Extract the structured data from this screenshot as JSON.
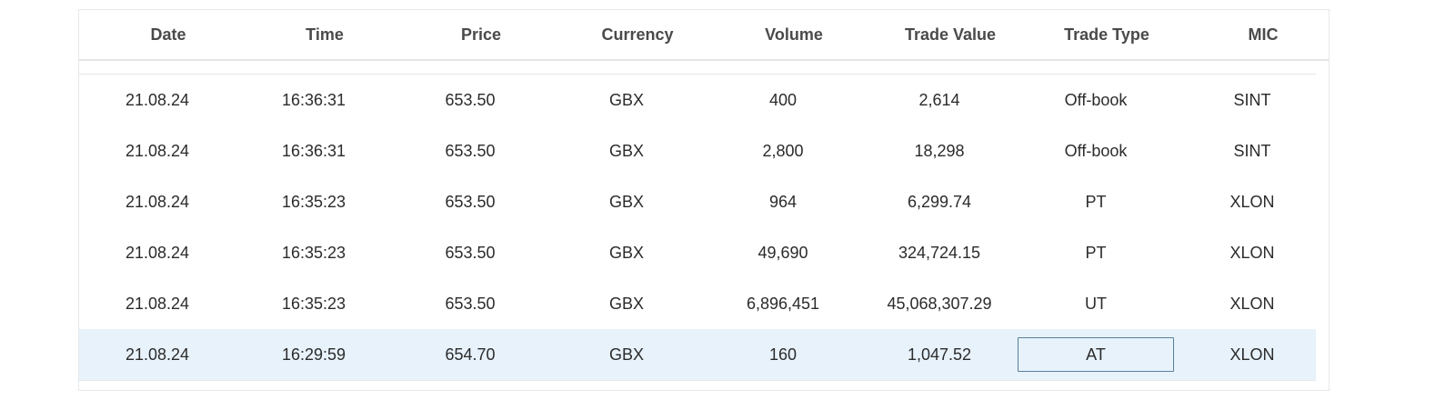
{
  "table": {
    "columns": [
      "Date",
      "Time",
      "Price",
      "Currency",
      "Volume",
      "Trade Value",
      "Trade Type",
      "MIC"
    ],
    "rows": [
      [
        "21.08.24",
        "16:36:31",
        "653.50",
        "GBX",
        "400",
        "2,614",
        "Off-book",
        "SINT"
      ],
      [
        "21.08.24",
        "16:36:31",
        "653.50",
        "GBX",
        "2,800",
        "18,298",
        "Off-book",
        "SINT"
      ],
      [
        "21.08.24",
        "16:35:23",
        "653.50",
        "GBX",
        "964",
        "6,299.74",
        "PT",
        "XLON"
      ],
      [
        "21.08.24",
        "16:35:23",
        "653.50",
        "GBX",
        "49,690",
        "324,724.15",
        "PT",
        "XLON"
      ],
      [
        "21.08.24",
        "16:35:23",
        "653.50",
        "GBX",
        "6,896,451",
        "45,068,307.29",
        "UT",
        "XLON"
      ],
      [
        "21.08.24",
        "16:29:59",
        "654.70",
        "GBX",
        "160",
        "1,047.52",
        "AT",
        "XLON"
      ]
    ],
    "selected_row": 5
  },
  "colors": {
    "selected_row_bg": "#e7f2fb",
    "focus_border": "#5a7f9a"
  }
}
